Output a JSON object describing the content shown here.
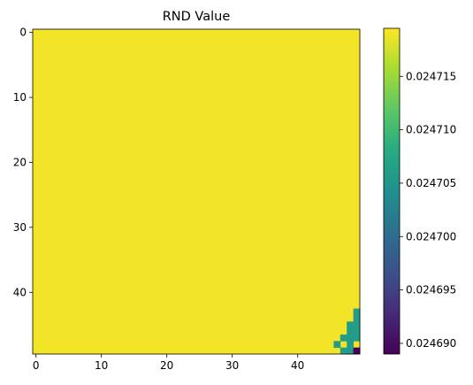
{
  "chart_data": {
    "type": "heatmap",
    "title": "RND Value",
    "xlabel": "",
    "ylabel": "",
    "grid": false,
    "colormap": "viridis",
    "rows": 50,
    "cols": 50,
    "x_ticks": [
      0,
      10,
      20,
      30,
      40
    ],
    "y_ticks": [
      0,
      10,
      20,
      30,
      40
    ],
    "y_axis_inverted": true,
    "default_value": 0.024719,
    "clim": [
      0.024689,
      0.0247195
    ],
    "colorbar": {
      "placement": "right",
      "ticks": [
        0.02469,
        0.024695,
        0.0247,
        0.024705,
        0.02471,
        0.024715
      ],
      "tick_labels": [
        "0.024690",
        "0.024695",
        "0.024700",
        "0.024705",
        "0.024710",
        "0.024715"
      ]
    },
    "exceptions": [
      {
        "row": 43,
        "col": 49,
        "value": 0.024706
      },
      {
        "row": 44,
        "col": 49,
        "value": 0.024706
      },
      {
        "row": 45,
        "col": 48,
        "value": 0.024706
      },
      {
        "row": 45,
        "col": 49,
        "value": 0.024706
      },
      {
        "row": 46,
        "col": 48,
        "value": 0.024706
      },
      {
        "row": 46,
        "col": 49,
        "value": 0.024706
      },
      {
        "row": 47,
        "col": 47,
        "value": 0.024706
      },
      {
        "row": 47,
        "col": 48,
        "value": 0.024706
      },
      {
        "row": 47,
        "col": 49,
        "value": 0.024706
      },
      {
        "row": 48,
        "col": 46,
        "value": 0.024706
      },
      {
        "row": 48,
        "col": 48,
        "value": 0.024706
      },
      {
        "row": 49,
        "col": 47,
        "value": 0.024706
      },
      {
        "row": 49,
        "col": 48,
        "value": 0.024706
      },
      {
        "row": 49,
        "col": 49,
        "value": 0.024689
      }
    ]
  }
}
